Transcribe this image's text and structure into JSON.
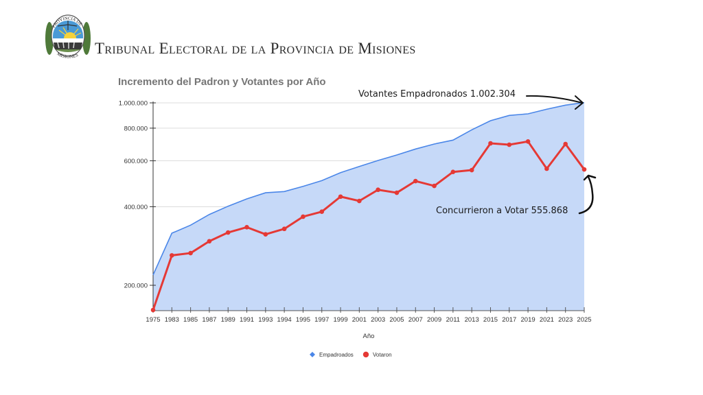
{
  "header": {
    "title": "Tribunal Electoral de la Provincia de Misiones",
    "logo_text_top": "PROVINCIA DE",
    "logo_text_bottom": "MISIONES"
  },
  "colors": {
    "empadronados_line": "#4a86e8",
    "empadronados_fill": "#c6d9f8",
    "votaron_line": "#e53935",
    "grid": "#dcdcdc",
    "axis": "#333333",
    "annotation": "#111111"
  },
  "chart_data": {
    "type": "area",
    "title": "Incremento del Padron y Votantes por Año",
    "xlabel": "Año",
    "ylabel": "",
    "yscale": "log",
    "ylim": [
      160000,
      1002304
    ],
    "yticks": [
      200000,
      400000,
      600000,
      800000,
      1000000
    ],
    "ytick_labels": [
      "200.000",
      "400.000",
      "600.000",
      "800.000",
      "1.000.000"
    ],
    "grid": true,
    "legend": "bottom",
    "categories": [
      "1975",
      "1983",
      "1985",
      "1987",
      "1989",
      "1991",
      "1993",
      "1994",
      "1995",
      "1997",
      "1999",
      "2001",
      "2003",
      "2005",
      "2007",
      "2009",
      "2011",
      "2013",
      "2015",
      "2017",
      "2019",
      "2021",
      "2023",
      "2025"
    ],
    "series": [
      {
        "name": "Empadroados",
        "marker": "diamond",
        "style": "area",
        "values": [
          219000,
          316700,
          340000,
          373600,
          401800,
          428600,
          452500,
          457300,
          478800,
          503700,
          540300,
          570600,
          601500,
          631400,
          665500,
          695600,
          719900,
          788300,
          854500,
          895100,
          907800,
          945400,
          980200,
          1002304
        ]
      },
      {
        "name": "Votaron",
        "marker": "circle",
        "style": "line",
        "values": [
          160500,
          260400,
          265700,
          295000,
          318600,
          333800,
          313500,
          329000,
          366300,
          382800,
          437200,
          420900,
          464500,
          452500,
          501600,
          480800,
          543700,
          552600,
          699800,
          691400,
          711200,
          559400,
          695600,
          555868
        ]
      }
    ],
    "annotations": [
      {
        "text": "Votantes Empadronados 1.002.304",
        "target": "Empadroados 2025"
      },
      {
        "text": "Concurrieron a Votar  555.868",
        "target": "Votaron 2025"
      }
    ]
  }
}
